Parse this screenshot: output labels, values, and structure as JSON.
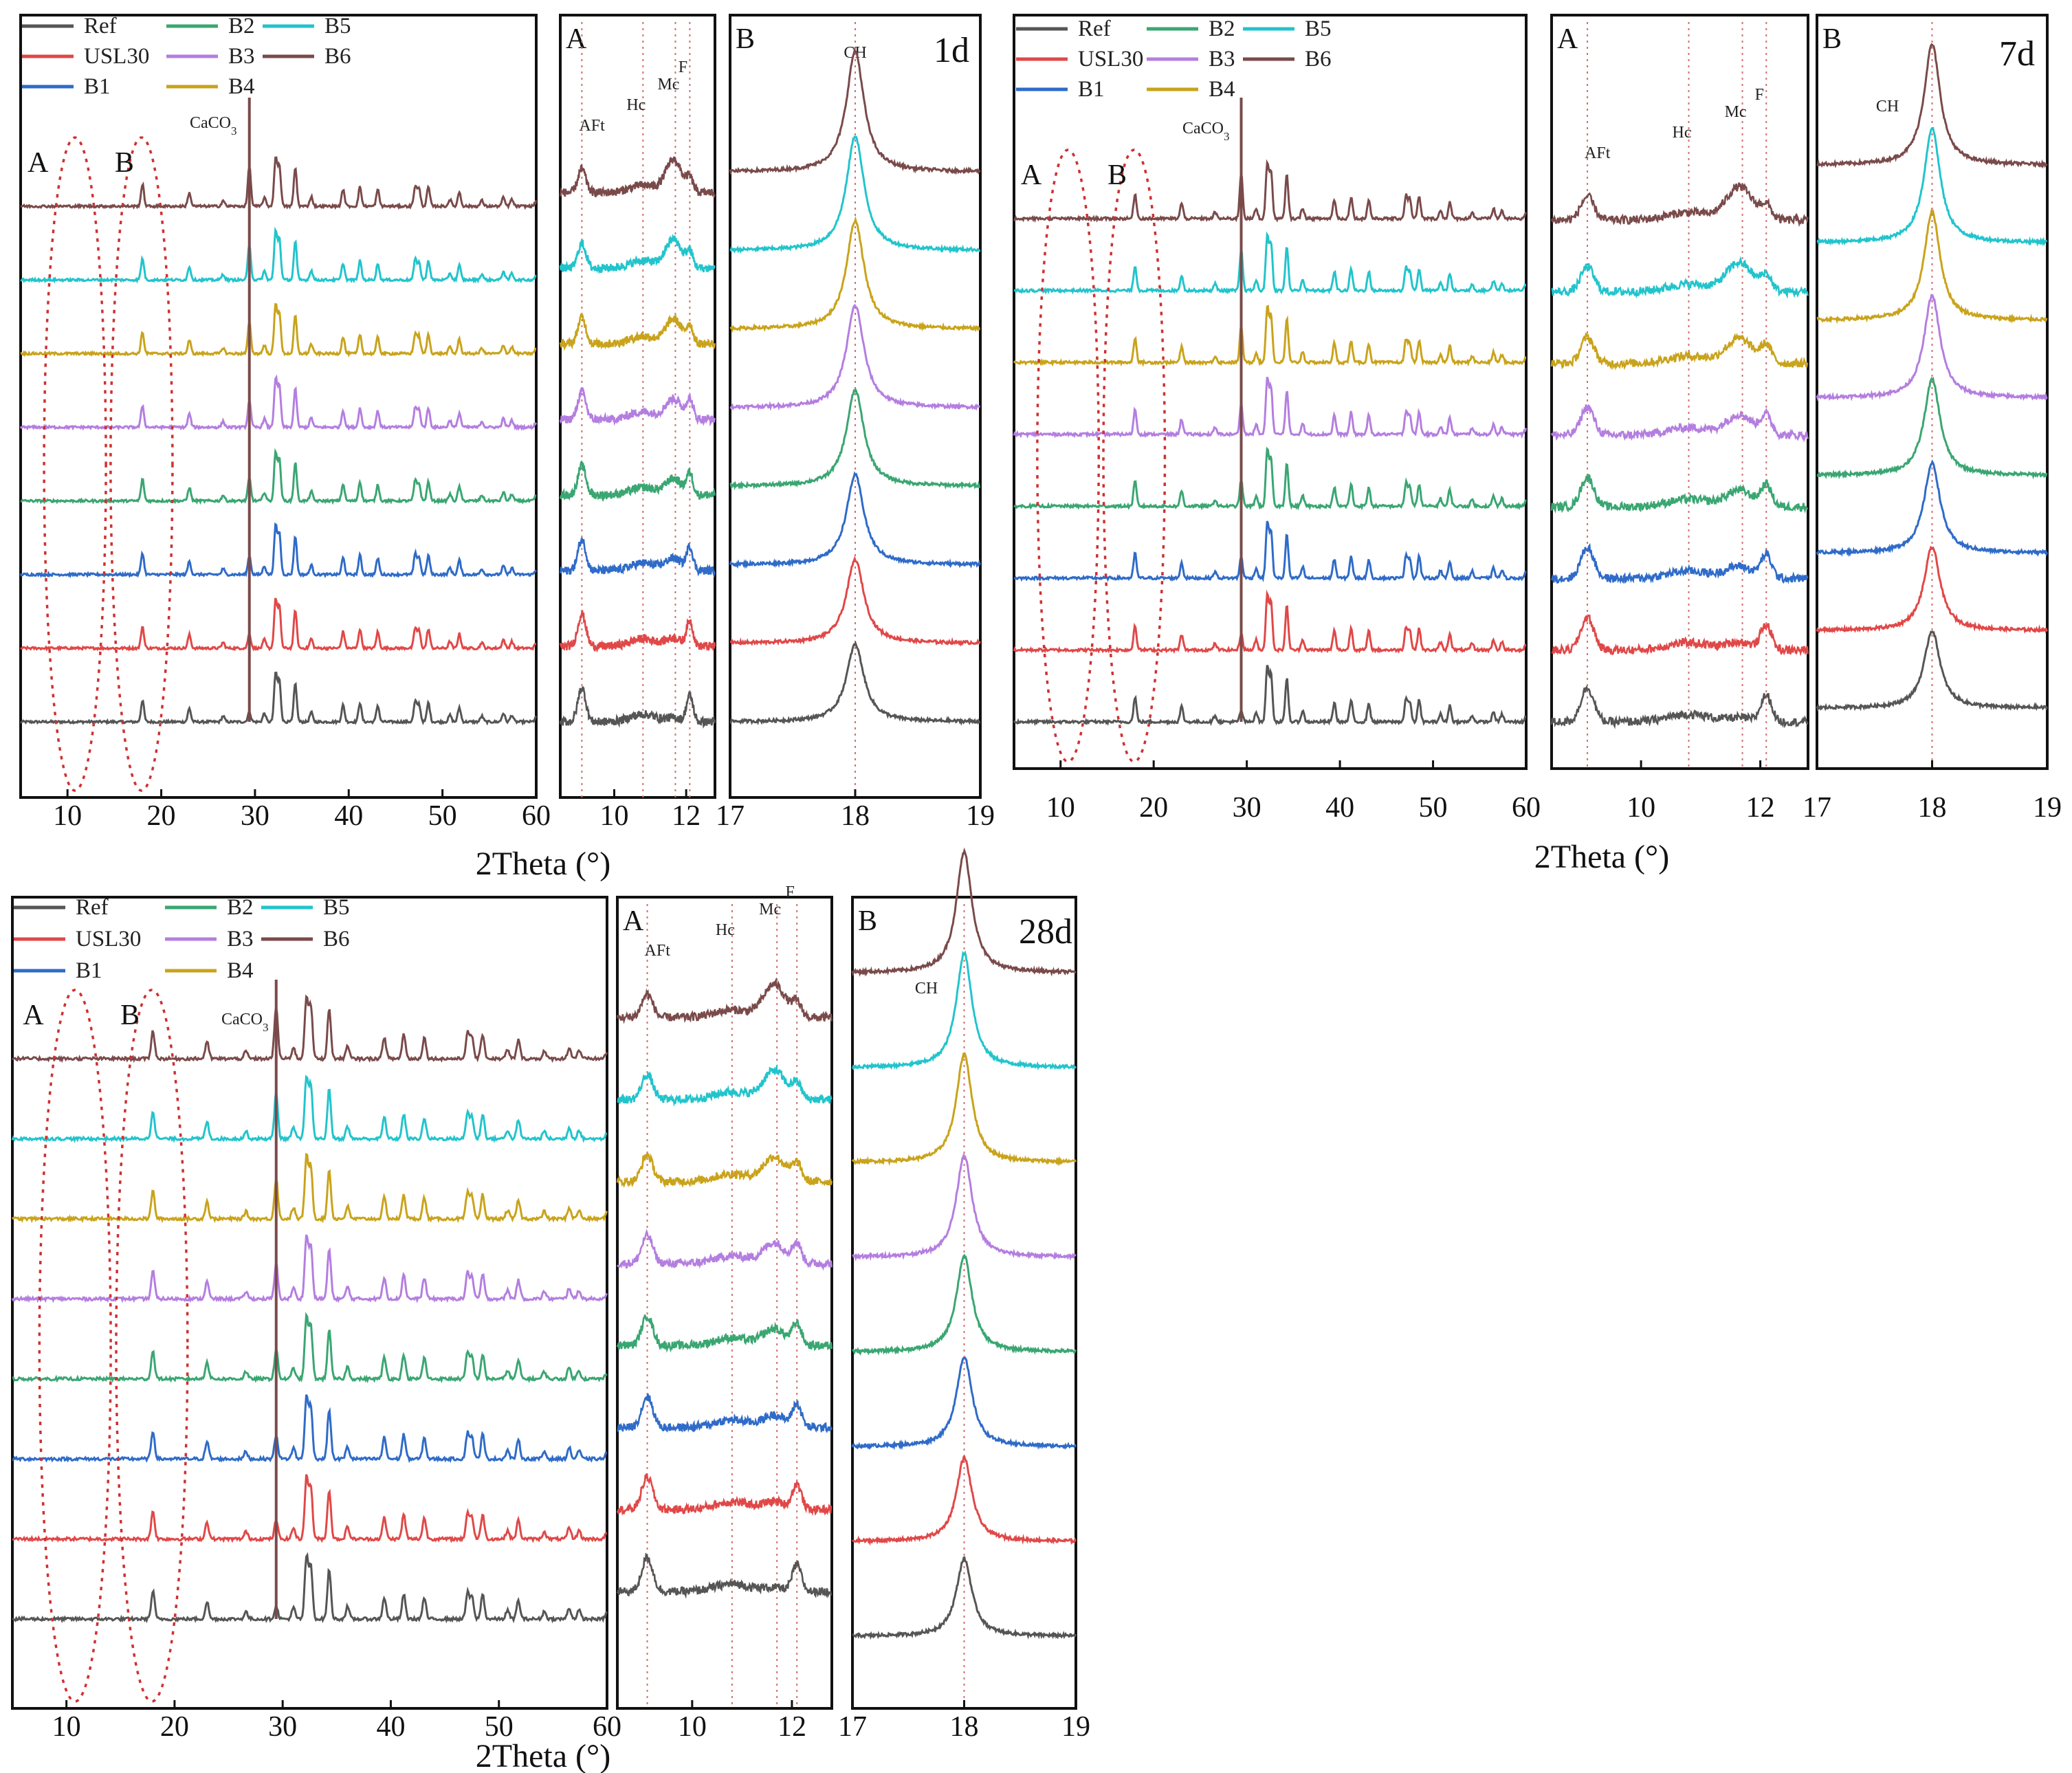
{
  "figure": {
    "x_axis_title": "2Theta (°)"
  },
  "legend": [
    {
      "label": "Ref",
      "color": "#555555"
    },
    {
      "label": "USL30",
      "color": "#e04848"
    },
    {
      "label": "B1",
      "color": "#2f6bc8"
    },
    {
      "label": "B2",
      "color": "#3aa672"
    },
    {
      "label": "B3",
      "color": "#b47ee0"
    },
    {
      "label": "B4",
      "color": "#c9a31b"
    },
    {
      "label": "B5",
      "color": "#22c4cc"
    },
    {
      "label": "B6",
      "color": "#7a4a4a"
    }
  ],
  "chart_data": [
    {
      "type": "line",
      "title": "1d",
      "xlabel": "2Theta (°)",
      "series_order_bottom_to_top": [
        "Ref",
        "USL30",
        "B1",
        "B2",
        "B3",
        "B4",
        "B5",
        "B6"
      ],
      "panels": [
        {
          "name": "full",
          "xlim": [
            5,
            60
          ],
          "xticks": [
            10,
            20,
            30,
            40,
            50,
            60
          ],
          "peaks": [
            {
              "x": 18.0,
              "label": ""
            },
            {
              "x": 29.4,
              "label": "CaCO3"
            },
            {
              "x": 32.2,
              "label": ""
            },
            {
              "x": 34.3,
              "label": ""
            }
          ],
          "regions": [
            "A",
            "B"
          ]
        },
        {
          "name": "A",
          "xlim": [
            8.5,
            12.8
          ],
          "xticks": [
            10,
            12
          ],
          "reference_lines": [
            {
              "x": 9.1,
              "label": "AFt"
            },
            {
              "x": 10.8,
              "label": "Hc"
            },
            {
              "x": 11.7,
              "label": "Mc"
            },
            {
              "x": 12.1,
              "label": "F"
            }
          ]
        },
        {
          "name": "B",
          "xlim": [
            17,
            19
          ],
          "xticks": [
            17,
            18,
            19
          ],
          "reference_lines": [
            {
              "x": 18.0,
              "label": "CH"
            }
          ]
        }
      ]
    },
    {
      "type": "line",
      "title": "7d",
      "xlabel": "2Theta (°)",
      "series_order_bottom_to_top": [
        "Ref",
        "USL30",
        "B1",
        "B2",
        "B3",
        "B4",
        "B5",
        "B6"
      ],
      "panels": [
        {
          "name": "full",
          "xlim": [
            5,
            60
          ],
          "xticks": [
            10,
            20,
            30,
            40,
            50,
            60
          ],
          "peaks": [
            {
              "x": 18.0,
              "label": ""
            },
            {
              "x": 29.4,
              "label": "CaCO3"
            },
            {
              "x": 32.2,
              "label": ""
            },
            {
              "x": 34.3,
              "label": ""
            }
          ],
          "regions": [
            "A",
            "B"
          ]
        },
        {
          "name": "A",
          "xlim": [
            8.5,
            12.8
          ],
          "xticks": [
            10,
            12
          ],
          "reference_lines": [
            {
              "x": 9.1,
              "label": "AFt"
            },
            {
              "x": 10.8,
              "label": "Hc"
            },
            {
              "x": 11.7,
              "label": "Mc"
            },
            {
              "x": 12.1,
              "label": "F"
            }
          ]
        },
        {
          "name": "B",
          "xlim": [
            17,
            19
          ],
          "xticks": [
            17,
            18,
            19
          ],
          "reference_lines": [
            {
              "x": 18.0,
              "label": "CH"
            }
          ]
        }
      ]
    },
    {
      "type": "line",
      "title": "28d",
      "xlabel": "2Theta (°)",
      "series_order_bottom_to_top": [
        "Ref",
        "USL30",
        "B1",
        "B2",
        "B3",
        "B4",
        "B5",
        "B6"
      ],
      "panels": [
        {
          "name": "full",
          "xlim": [
            5,
            60
          ],
          "xticks": [
            10,
            20,
            30,
            40,
            50,
            60
          ],
          "peaks": [
            {
              "x": 18.0,
              "label": ""
            },
            {
              "x": 29.4,
              "label": "CaCO3"
            },
            {
              "x": 32.2,
              "label": ""
            },
            {
              "x": 34.3,
              "label": ""
            }
          ],
          "regions": [
            "A",
            "B"
          ]
        },
        {
          "name": "A",
          "xlim": [
            8.5,
            12.8
          ],
          "xticks": [
            10,
            12
          ],
          "reference_lines": [
            {
              "x": 9.1,
              "label": "AFt"
            },
            {
              "x": 10.8,
              "label": "Hc"
            },
            {
              "x": 11.7,
              "label": "Mc"
            },
            {
              "x": 12.1,
              "label": "F"
            }
          ]
        },
        {
          "name": "B",
          "xlim": [
            17,
            19
          ],
          "xticks": [
            17,
            18,
            19
          ],
          "reference_lines": [
            {
              "x": 18.0,
              "label": "CH"
            }
          ]
        }
      ]
    }
  ]
}
